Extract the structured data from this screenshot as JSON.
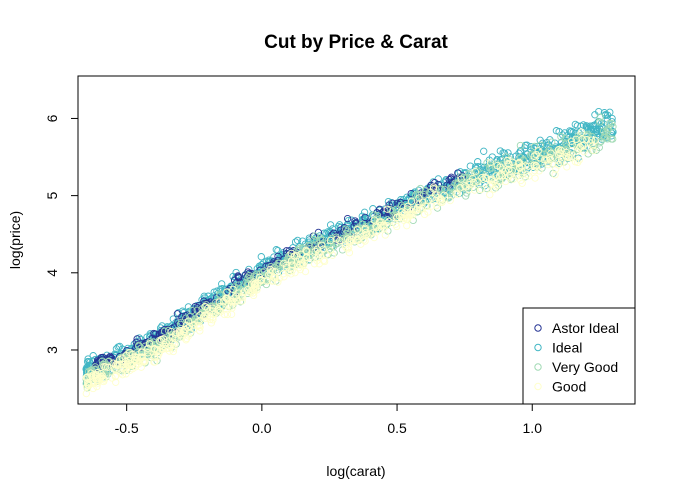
{
  "chart_data": {
    "type": "scatter",
    "title": "Cut by Price & Carat",
    "xlabel": "log(carat)",
    "ylabel": "log(price)",
    "xlim": [
      -0.68,
      1.38
    ],
    "ylim": [
      2.3,
      6.55
    ],
    "x_ticks": [
      -0.5,
      0.0,
      0.5,
      1.0
    ],
    "x_tick_labels": [
      "-0.5",
      "0.0",
      "0.5",
      "1.0"
    ],
    "y_ticks": [
      3,
      4,
      5,
      6
    ],
    "y_tick_labels": [
      "3",
      "4",
      "5",
      "6"
    ],
    "grid": false,
    "legend_position": "bottom-right",
    "series": [
      {
        "name": "Astor Ideal",
        "color": "#253494",
        "x_range": [
          -0.62,
          0.75
        ],
        "offset": 0.06,
        "spread": 0.1,
        "x": [
          -0.6,
          -0.5,
          -0.4,
          -0.3,
          -0.2,
          -0.1,
          0.0,
          0.1,
          0.2,
          0.3,
          0.4,
          0.5,
          0.6,
          0.7
        ],
        "y": [
          2.78,
          2.91,
          3.08,
          3.32,
          3.56,
          3.79,
          4.02,
          4.19,
          4.35,
          4.5,
          4.65,
          4.82,
          4.98,
          5.14
        ]
      },
      {
        "name": "Ideal",
        "color": "#41b6c4",
        "x_range": [
          -0.65,
          1.3
        ],
        "offset": 0.04,
        "spread": 0.14,
        "x": [
          -0.6,
          -0.4,
          -0.2,
          0.0,
          0.2,
          0.4,
          0.6,
          0.8,
          1.0,
          1.2
        ],
        "y": [
          2.75,
          3.05,
          3.54,
          4.0,
          4.33,
          4.63,
          4.96,
          5.27,
          5.48,
          5.75
        ]
      },
      {
        "name": "Very Good",
        "color": "#a1dab4",
        "x_range": [
          -0.65,
          1.3
        ],
        "offset": -0.04,
        "spread": 0.14,
        "x": [
          -0.6,
          -0.4,
          -0.2,
          0.0,
          0.2,
          0.4,
          0.6,
          0.8,
          1.0,
          1.2
        ],
        "y": [
          2.67,
          2.97,
          3.46,
          3.92,
          4.25,
          4.55,
          4.88,
          5.19,
          5.4,
          5.67
        ]
      },
      {
        "name": "Good",
        "color": "#ffffcc",
        "x_range": [
          -0.65,
          1.25
        ],
        "offset": -0.1,
        "spread": 0.14,
        "x": [
          -0.6,
          -0.4,
          -0.2,
          0.0,
          0.2,
          0.4,
          0.6,
          0.8,
          1.0,
          1.2
        ],
        "y": [
          2.61,
          2.91,
          3.4,
          3.86,
          4.19,
          4.49,
          4.82,
          5.13,
          5.34,
          5.61
        ]
      }
    ]
  }
}
